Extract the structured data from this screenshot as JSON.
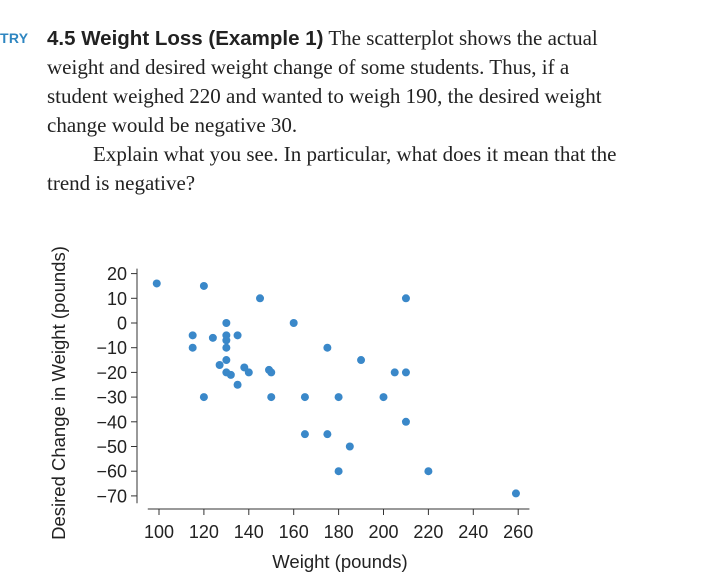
{
  "exercise": {
    "tag": "TRY",
    "heading": "4.5 Weight Loss (Example 1)",
    "lines": [
      "The scatterplot shows the actual",
      "weight and desired weight change of some students. Thus, if a",
      "student weighed 220 and wanted to weigh 190, the desired weight",
      "change would be negative 30.",
      "Explain what you see. In particular, what does it mean that the",
      "trend is negative?"
    ]
  },
  "chart_data": {
    "type": "scatter",
    "xlabel": "Weight (pounds)",
    "ylabel": "Desired Change in Weight (pounds)",
    "xlim": [
      95,
      265
    ],
    "ylim": [
      -73,
      22
    ],
    "xticks": [
      100,
      120,
      140,
      160,
      180,
      200,
      220,
      240,
      260
    ],
    "yticks": [
      20,
      10,
      0,
      -10,
      -20,
      -30,
      -40,
      -50,
      -60,
      -70
    ],
    "xtick_labels": [
      "100",
      "120",
      "140",
      "160",
      "180",
      "200",
      "220",
      "240",
      "260"
    ],
    "ytick_labels": [
      "20",
      "10",
      "0",
      "−10",
      "−20",
      "−30",
      "−40",
      "−50",
      "−60",
      "−70"
    ],
    "grid": false,
    "point_color": "#3a88c9",
    "points": [
      {
        "x": 99,
        "y": 16
      },
      {
        "x": 120,
        "y": 15
      },
      {
        "x": 145,
        "y": 10
      },
      {
        "x": 210,
        "y": 10
      },
      {
        "x": 130,
        "y": 0
      },
      {
        "x": 160,
        "y": 0
      },
      {
        "x": 115,
        "y": -5
      },
      {
        "x": 124,
        "y": -6
      },
      {
        "x": 130,
        "y": -5
      },
      {
        "x": 135,
        "y": -5
      },
      {
        "x": 130,
        "y": -7
      },
      {
        "x": 115,
        "y": -10
      },
      {
        "x": 130,
        "y": -10
      },
      {
        "x": 175,
        "y": -10
      },
      {
        "x": 130,
        "y": -15
      },
      {
        "x": 190,
        "y": -15
      },
      {
        "x": 127,
        "y": -17
      },
      {
        "x": 138,
        "y": -18
      },
      {
        "x": 130,
        "y": -20
      },
      {
        "x": 132,
        "y": -21
      },
      {
        "x": 140,
        "y": -20
      },
      {
        "x": 149,
        "y": -19
      },
      {
        "x": 150,
        "y": -20
      },
      {
        "x": 205,
        "y": -20
      },
      {
        "x": 210,
        "y": -20
      },
      {
        "x": 135,
        "y": -25
      },
      {
        "x": 120,
        "y": -30
      },
      {
        "x": 150,
        "y": -30
      },
      {
        "x": 165,
        "y": -30
      },
      {
        "x": 180,
        "y": -30
      },
      {
        "x": 200,
        "y": -30
      },
      {
        "x": 210,
        "y": -40
      },
      {
        "x": 165,
        "y": -45
      },
      {
        "x": 175,
        "y": -45
      },
      {
        "x": 185,
        "y": -50
      },
      {
        "x": 180,
        "y": -60
      },
      {
        "x": 220,
        "y": -60
      },
      {
        "x": 259,
        "y": -69
      }
    ]
  }
}
